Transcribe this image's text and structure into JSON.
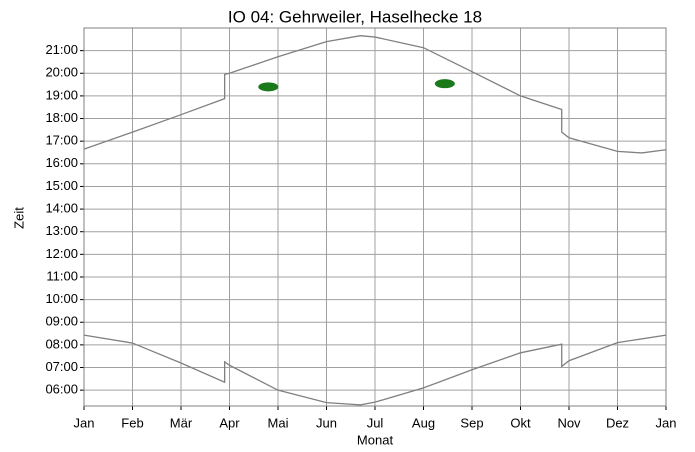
{
  "chart_data": {
    "type": "line",
    "title": "IO 04: Gehrweiler, Haselhecke 18",
    "xlabel": "Monat",
    "ylabel": "Zeit",
    "xlim": [
      0,
      12
    ],
    "xticks": [
      {
        "value": 0,
        "label": "Jan"
      },
      {
        "value": 1,
        "label": "Feb"
      },
      {
        "value": 2,
        "label": "Mär"
      },
      {
        "value": 3,
        "label": "Apr"
      },
      {
        "value": 4,
        "label": "Mai"
      },
      {
        "value": 5,
        "label": "Jun"
      },
      {
        "value": 6,
        "label": "Jul"
      },
      {
        "value": 7,
        "label": "Aug"
      },
      {
        "value": 8,
        "label": "Sep"
      },
      {
        "value": 9,
        "label": "Okt"
      },
      {
        "value": 10,
        "label": "Nov"
      },
      {
        "value": 11,
        "label": "Dez"
      },
      {
        "value": 12,
        "label": "Jan"
      }
    ],
    "ylim": [
      5.3,
      22
    ],
    "yticks": [
      {
        "value": 6,
        "label": "06:00"
      },
      {
        "value": 7,
        "label": "07:00"
      },
      {
        "value": 8,
        "label": "08:00"
      },
      {
        "value": 9,
        "label": "09:00"
      },
      {
        "value": 10,
        "label": "10:00"
      },
      {
        "value": 11,
        "label": "11:00"
      },
      {
        "value": 12,
        "label": "12:00"
      },
      {
        "value": 13,
        "label": "13:00"
      },
      {
        "value": 14,
        "label": "14:00"
      },
      {
        "value": 15,
        "label": "15:00"
      },
      {
        "value": 16,
        "label": "16:00"
      },
      {
        "value": 17,
        "label": "17:00"
      },
      {
        "value": 18,
        "label": "18:00"
      },
      {
        "value": 19,
        "label": "19:00"
      },
      {
        "value": 20,
        "label": "20:00"
      },
      {
        "value": 21,
        "label": "21:00"
      }
    ],
    "grid": true,
    "series": [
      {
        "color": "#808080",
        "x": [
          0,
          1,
          2,
          2.9,
          2.9,
          3,
          4,
          5,
          5.7,
          6,
          7,
          8,
          9,
          9.85,
          9.85,
          10,
          11,
          11.5,
          12
        ],
        "values": [
          16.65,
          17.4,
          18.17,
          18.88,
          19.95,
          20.0,
          20.73,
          21.4,
          21.66,
          21.6,
          21.13,
          20.07,
          19.0,
          18.4,
          17.4,
          17.15,
          16.55,
          16.48,
          16.62
        ]
      },
      {
        "color": "#808080",
        "x": [
          0,
          1,
          2,
          2.9,
          2.9,
          3,
          4,
          5,
          5.7,
          6,
          7,
          8,
          9,
          9.85,
          9.85,
          10,
          11,
          12
        ],
        "values": [
          8.43,
          8.08,
          7.2,
          6.35,
          7.25,
          7.1,
          6.0,
          5.45,
          5.35,
          5.47,
          6.1,
          6.9,
          7.65,
          8.03,
          7.05,
          7.3,
          8.1,
          8.43
        ]
      },
      {
        "type": "scatter",
        "color": "#1a7a1a",
        "x": [
          3.8,
          7.44
        ],
        "values": [
          19.4,
          19.54
        ]
      }
    ]
  }
}
